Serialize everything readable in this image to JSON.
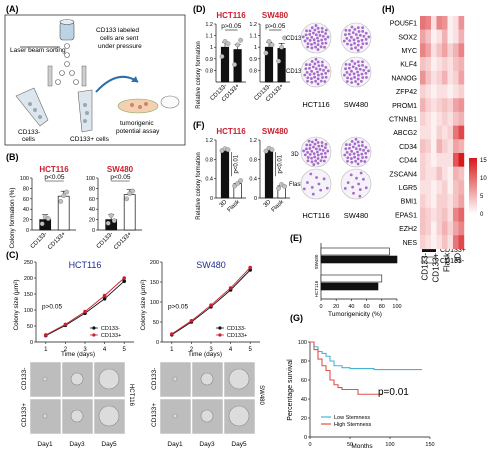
{
  "panel_labels": {
    "A": "(A)",
    "B": "(B)",
    "C": "(C)",
    "D": "(D)",
    "E": "(E)",
    "F": "(F)",
    "G": "(G)",
    "H": "(H)"
  },
  "colors": {
    "red": "#cc1f2f",
    "blue": "#1f2b8f",
    "bar_black": "#111111",
    "scatter_dot": "#c0c0c0",
    "heat_low": "#ffffff",
    "heat_high": "#d7191c",
    "sorting_cell": "#9ec9dd",
    "tube": "#d8e2ec",
    "dish": "#efb98d"
  },
  "panelA": {
    "laser": "Laser beam sorting",
    "note_line1": "CD133 labeled",
    "note_line2": "cells are sent",
    "note_line3": "under pressure",
    "neg": "CD133-",
    "neg2": "cells",
    "pos": "CD133+ cells",
    "assay1": "tumorigenic",
    "assay2": "potential assay"
  },
  "panelB": {
    "ylabel": "Colony formation (%)",
    "sig": "p<0.05",
    "xcats": [
      "CD133-",
      "CD133+"
    ]
  },
  "panelD": {
    "ylabel": "Relative colony formation",
    "sig": "p>0.05",
    "xcats": [
      "CD133-",
      "CD133+"
    ],
    "img_row1": "CD133-",
    "img_row2": "CD133+"
  },
  "panelF": {
    "ylabel": "Relative colony formation",
    "sig": "p<0.01",
    "xcats": [
      "3D",
      "Flask"
    ],
    "img_row1": "3D",
    "img_row2": "Flask"
  },
  "panelC": {
    "ylabel": "Colony size (μm²)",
    "xlabel": "Time (days)",
    "sig": "p>0.05",
    "legend_neg": "CD133-",
    "legend_pos": "CD133+",
    "row1": "CD133-",
    "row2": "CD133+",
    "days": [
      "Day1",
      "Day3",
      "Day5"
    ]
  },
  "panelE": {
    "xlabel": "Tumorigenicity (%)",
    "legend_pos": "CD133+",
    "legend_neg": "CD133-"
  },
  "panelG": {
    "ylabel": "Percentage survival",
    "xlabel": "Months",
    "sig": "p=0.01",
    "legend_low": "Low Stemness",
    "legend_high": "High Stemness"
  },
  "panelH": {
    "colorbar_max": "15",
    "colorbar_mid": "10",
    "colorbar_5": "5",
    "colorbar_min": "0"
  },
  "chart_data": [
    {
      "id": "B-HCT116",
      "type": "bar",
      "title": "HCT116",
      "categories": [
        "CD133-",
        "CD133+"
      ],
      "values": [
        20,
        65
      ],
      "ylim": [
        0,
        100
      ],
      "yticks": [
        0,
        20,
        40,
        60,
        80,
        100
      ],
      "points": [
        [
          12,
          25,
          22
        ],
        [
          55,
          66,
          73
        ]
      ]
    },
    {
      "id": "B-SW480",
      "type": "bar",
      "title": "SW480",
      "categories": [
        "CD133-",
        "CD133+"
      ],
      "values": [
        20,
        68
      ],
      "ylim": [
        0,
        100
      ],
      "yticks": [
        0,
        20,
        40,
        60,
        80,
        100
      ],
      "points": [
        [
          13,
          28,
          18
        ],
        [
          60,
          70,
          75
        ]
      ]
    },
    {
      "id": "D-HCT116",
      "type": "bar",
      "title": "HCT116",
      "categories": [
        "CD133-",
        "CD133+"
      ],
      "values": [
        1.0,
        0.98
      ],
      "ylim": [
        0.7,
        1.2
      ],
      "yticks": [
        0.8,
        0.9,
        1.0,
        1.1,
        1.2
      ],
      "points": [
        [
          0.92,
          1.05,
          1.03
        ],
        [
          0.85,
          1.02,
          1.06
        ]
      ]
    },
    {
      "id": "D-SW480",
      "type": "bar",
      "title": "SW480",
      "categories": [
        "CD133-",
        "CD133+"
      ],
      "values": [
        1.0,
        0.99
      ],
      "ylim": [
        0.7,
        1.2
      ],
      "yticks": [
        0.8,
        0.9,
        1.0,
        1.1,
        1.2
      ],
      "points": [
        [
          0.95,
          1.05,
          1.02
        ],
        [
          0.88,
          1.0,
          1.08
        ]
      ]
    },
    {
      "id": "F-HCT116",
      "type": "bar",
      "title": "HCT116",
      "categories": [
        "3D",
        "Flask"
      ],
      "values": [
        1.0,
        0.3
      ],
      "ylim": [
        0,
        1.2
      ],
      "yticks": [
        0,
        0.4,
        0.8,
        1.2
      ],
      "points": [
        [
          0.98,
          1.02,
          1.0
        ],
        [
          0.25,
          0.3,
          0.36
        ]
      ]
    },
    {
      "id": "F-SW480",
      "type": "bar",
      "title": "SW480",
      "categories": [
        "3D",
        "Flask"
      ],
      "values": [
        1.0,
        0.25
      ],
      "ylim": [
        0,
        1.2
      ],
      "yticks": [
        0,
        0.4,
        0.8,
        1.2
      ],
      "points": [
        [
          0.97,
          1.03,
          1.0
        ],
        [
          0.2,
          0.28,
          0.24
        ]
      ]
    },
    {
      "id": "C-HCT116",
      "type": "line",
      "title": "HCT116",
      "x": [
        1,
        2,
        3,
        4,
        5
      ],
      "ylim": [
        0,
        250
      ],
      "yticks": [
        0,
        50,
        100,
        150,
        200,
        250
      ],
      "series": [
        {
          "name": "CD133-",
          "values": [
            20,
            52,
            90,
            135,
            190
          ]
        },
        {
          "name": "CD133+",
          "values": [
            22,
            55,
            95,
            145,
            200
          ]
        }
      ]
    },
    {
      "id": "C-SW480",
      "type": "line",
      "title": "SW480",
      "x": [
        1,
        2,
        3,
        4,
        5
      ],
      "ylim": [
        0,
        200
      ],
      "yticks": [
        0,
        50,
        100,
        150,
        200
      ],
      "series": [
        {
          "name": "CD133-",
          "values": [
            18,
            50,
            88,
            130,
            180
          ]
        },
        {
          "name": "CD133+",
          "values": [
            20,
            53,
            92,
            135,
            186
          ]
        }
      ]
    },
    {
      "id": "E",
      "type": "bar",
      "orientation": "horizontal",
      "categories": [
        "SW480",
        "HCT116"
      ],
      "xlim": [
        0,
        100
      ],
      "xticks": [
        0,
        20,
        40,
        60,
        80,
        100
      ],
      "series": [
        {
          "name": "CD133-",
          "values": [
            90,
            80
          ]
        },
        {
          "name": "CD133+",
          "values": [
            100,
            75
          ]
        }
      ]
    },
    {
      "id": "G",
      "type": "line",
      "xlim": [
        0,
        150
      ],
      "xticks": [
        0,
        50,
        100,
        150
      ],
      "ylim": [
        0,
        100
      ],
      "yticks": [
        0,
        20,
        40,
        60,
        80,
        100
      ],
      "series": [
        {
          "name": "Low Stemness",
          "values": [
            [
              0,
              100
            ],
            [
              5,
              95
            ],
            [
              10,
              90
            ],
            [
              15,
              88
            ],
            [
              20,
              85
            ],
            [
              25,
              80
            ],
            [
              30,
              75
            ],
            [
              40,
              73
            ],
            [
              50,
              72
            ],
            [
              60,
              72
            ],
            [
              80,
              71
            ],
            [
              100,
              71
            ],
            [
              120,
              71
            ],
            [
              140,
              71
            ]
          ]
        },
        {
          "name": "High Stemness",
          "values": [
            [
              0,
              100
            ],
            [
              5,
              92
            ],
            [
              10,
              82
            ],
            [
              15,
              75
            ],
            [
              20,
              70
            ],
            [
              25,
              60
            ],
            [
              30,
              55
            ],
            [
              35,
              52
            ],
            [
              40,
              50
            ],
            [
              50,
              50
            ],
            [
              60,
              45
            ],
            [
              70,
              45
            ],
            [
              90,
              45
            ]
          ]
        }
      ]
    },
    {
      "id": "H",
      "type": "heatmap",
      "columns": [
        "CD133-",
        "CD133+",
        "Flask",
        "3D"
      ],
      "rows": [
        "POU5F1",
        "SOX2",
        "MYC",
        "KLF4",
        "NANOG",
        "ZFP42",
        "PROM1",
        "CTNNB1",
        "ABCG2",
        "CD34",
        "CD44",
        "ZSCAN4",
        "LGR5",
        "BMI1",
        "EPAS1",
        "EZH2",
        "NES"
      ],
      "values": [
        [
          9,
          8,
          2,
          8,
          7,
          1,
          2,
          7
        ],
        [
          6,
          4,
          1,
          2,
          5,
          1,
          2,
          5
        ],
        [
          8,
          6,
          2,
          4,
          6,
          3,
          5,
          8
        ],
        [
          4,
          3,
          1,
          2,
          3,
          2,
          4,
          5
        ],
        [
          7,
          4,
          2,
          3,
          5,
          2,
          3,
          6
        ],
        [
          3,
          2,
          1,
          2,
          2,
          1,
          2,
          3
        ],
        [
          5,
          3,
          2,
          3,
          4,
          3,
          6,
          7
        ],
        [
          3,
          2,
          1,
          2,
          3,
          2,
          4,
          5
        ],
        [
          2,
          2,
          1,
          3,
          2,
          3,
          9,
          12
        ],
        [
          4,
          3,
          1,
          5,
          3,
          2,
          6,
          5
        ],
        [
          3,
          2,
          1,
          2,
          2,
          2,
          11,
          15
        ],
        [
          3,
          2,
          2,
          4,
          2,
          1,
          5,
          4
        ],
        [
          2,
          2,
          1,
          2,
          3,
          1,
          4,
          5
        ],
        [
          3,
          2,
          1,
          3,
          3,
          2,
          4,
          6
        ],
        [
          4,
          3,
          2,
          3,
          4,
          2,
          8,
          10
        ],
        [
          4,
          3,
          1,
          3,
          5,
          3,
          6,
          8
        ],
        [
          3,
          2,
          1,
          2,
          4,
          2,
          9,
          12
        ]
      ],
      "colorbar_range": [
        0,
        15
      ]
    }
  ]
}
